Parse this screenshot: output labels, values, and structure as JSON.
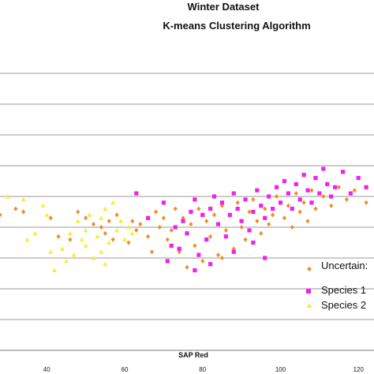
{
  "chart_data": {
    "type": "scatter",
    "title": "Winter Dataset",
    "subtitle": "K-means Clustering Algorithm",
    "xlabel": "SAP Red",
    "ylabel": "",
    "xlim": [
      28,
      124
    ],
    "ylim": [
      0,
      10
    ],
    "x_ticks": [
      40,
      60,
      80,
      100,
      120
    ],
    "y_gridlines": [
      1,
      2,
      3,
      4,
      5,
      6,
      7,
      8,
      9
    ],
    "grid": true,
    "legend_placement": "bottom-right",
    "series": [
      {
        "name": "Uncertain:",
        "color": "#f28c28",
        "marker": "diamond",
        "points": [
          [
            28,
            4.4
          ],
          [
            32,
            4.6
          ],
          [
            34,
            4.5
          ],
          [
            41,
            4.3
          ],
          [
            43,
            3.7
          ],
          [
            46,
            3.6
          ],
          [
            48,
            4.5
          ],
          [
            50,
            4.3
          ],
          [
            52,
            4.1
          ],
          [
            54,
            4.0
          ],
          [
            55,
            3.8
          ],
          [
            56,
            4.2
          ],
          [
            57,
            3.6
          ],
          [
            58,
            4.4
          ],
          [
            61,
            3.5
          ],
          [
            62,
            4.2
          ],
          [
            63,
            3.9
          ],
          [
            64,
            4.1
          ],
          [
            66,
            3.7
          ],
          [
            67,
            3.2
          ],
          [
            68,
            4.5
          ],
          [
            69,
            4.0
          ],
          [
            70,
            4.3
          ],
          [
            71,
            3.6
          ],
          [
            72,
            3.9
          ],
          [
            73,
            4.6
          ],
          [
            74,
            3.2
          ],
          [
            75,
            4.3
          ],
          [
            76,
            3.8
          ],
          [
            77,
            4.1
          ],
          [
            78,
            3.4
          ],
          [
            79,
            4.6
          ],
          [
            80,
            2.9
          ],
          [
            81,
            4.2
          ],
          [
            82,
            3.7
          ],
          [
            83,
            4.4
          ],
          [
            84,
            3.1
          ],
          [
            85,
            4.7
          ],
          [
            86,
            3.9
          ],
          [
            87,
            4.4
          ],
          [
            88,
            3.3
          ],
          [
            89,
            4.8
          ],
          [
            90,
            4.0
          ],
          [
            91,
            3.6
          ],
          [
            92,
            4.5
          ],
          [
            93,
            4.9
          ],
          [
            94,
            4.2
          ],
          [
            95,
            3.8
          ],
          [
            96,
            4.6
          ],
          [
            97,
            4.1
          ],
          [
            98,
            4.4
          ],
          [
            99,
            5.0
          ],
          [
            101,
            4.3
          ],
          [
            102,
            4.7
          ],
          [
            103,
            4.0
          ],
          [
            104,
            5.1
          ],
          [
            105,
            4.5
          ],
          [
            106,
            4.8
          ],
          [
            107,
            4.2
          ],
          [
            108,
            5.2
          ],
          [
            109,
            4.6
          ],
          [
            111,
            5.0
          ],
          [
            113,
            4.7
          ],
          [
            115,
            5.3
          ],
          [
            117,
            4.9
          ],
          [
            119,
            5.2
          ],
          [
            122,
            4.8
          ],
          [
            76,
            2.7
          ],
          [
            85,
            3.0
          ],
          [
            95,
            4.7
          ]
        ]
      },
      {
        "name": "Species 1",
        "color": "#ee22ee",
        "marker": "square",
        "points": [
          [
            63,
            5.1
          ],
          [
            66,
            4.3
          ],
          [
            70,
            4.8
          ],
          [
            72,
            3.4
          ],
          [
            73,
            4.0
          ],
          [
            75,
            4.2
          ],
          [
            76,
            3.8
          ],
          [
            77,
            4.5
          ],
          [
            78,
            4.9
          ],
          [
            79,
            3.1
          ],
          [
            80,
            4.4
          ],
          [
            81,
            3.6
          ],
          [
            82,
            4.6
          ],
          [
            83,
            5.0
          ],
          [
            84,
            4.1
          ],
          [
            85,
            4.8
          ],
          [
            86,
            3.7
          ],
          [
            87,
            4.4
          ],
          [
            88,
            5.1
          ],
          [
            89,
            4.6
          ],
          [
            90,
            4.2
          ],
          [
            91,
            4.9
          ],
          [
            92,
            3.9
          ],
          [
            93,
            4.5
          ],
          [
            94,
            5.2
          ],
          [
            95,
            4.7
          ],
          [
            96,
            4.3
          ],
          [
            97,
            5.0
          ],
          [
            98,
            4.6
          ],
          [
            99,
            5.3
          ],
          [
            100,
            4.8
          ],
          [
            101,
            5.5
          ],
          [
            102,
            5.1
          ],
          [
            103,
            4.6
          ],
          [
            104,
            5.4
          ],
          [
            105,
            4.9
          ],
          [
            106,
            5.7
          ],
          [
            107,
            5.2
          ],
          [
            108,
            4.8
          ],
          [
            109,
            5.6
          ],
          [
            110,
            5.1
          ],
          [
            111,
            5.9
          ],
          [
            112,
            5.4
          ],
          [
            113,
            5.0
          ],
          [
            114,
            5.3
          ],
          [
            116,
            5.8
          ],
          [
            118,
            5.1
          ],
          [
            120,
            5.6
          ],
          [
            122,
            5.3
          ],
          [
            71,
            2.9
          ],
          [
            74,
            3.3
          ],
          [
            78,
            2.6
          ],
          [
            82,
            2.8
          ],
          [
            88,
            3.2
          ],
          [
            93,
            3.5
          ],
          [
            96,
            3.0
          ]
        ]
      },
      {
        "name": "Species 2",
        "color": "#f5ee3c",
        "marker": "triangle",
        "points": [
          [
            30,
            5.0
          ],
          [
            34,
            4.9
          ],
          [
            35,
            3.6
          ],
          [
            37,
            3.8
          ],
          [
            39,
            4.7
          ],
          [
            40,
            4.4
          ],
          [
            41,
            3.2
          ],
          [
            42,
            2.6
          ],
          [
            44,
            3.3
          ],
          [
            45,
            2.9
          ],
          [
            46,
            3.8
          ],
          [
            47,
            3.1
          ],
          [
            48,
            4.2
          ],
          [
            49,
            3.6
          ],
          [
            50,
            3.9
          ],
          [
            50,
            3.4
          ],
          [
            51,
            4.4
          ],
          [
            52,
            3.0
          ],
          [
            53,
            3.7
          ],
          [
            54,
            4.3
          ],
          [
            54,
            3.2
          ],
          [
            55,
            2.8
          ],
          [
            55,
            4.6
          ],
          [
            56,
            3.5
          ],
          [
            57,
            4.8
          ],
          [
            58,
            3.9
          ],
          [
            59,
            4.2
          ],
          [
            60,
            3.6
          ],
          [
            61,
            4.0
          ],
          [
            62,
            3.8
          ]
        ]
      }
    ]
  }
}
